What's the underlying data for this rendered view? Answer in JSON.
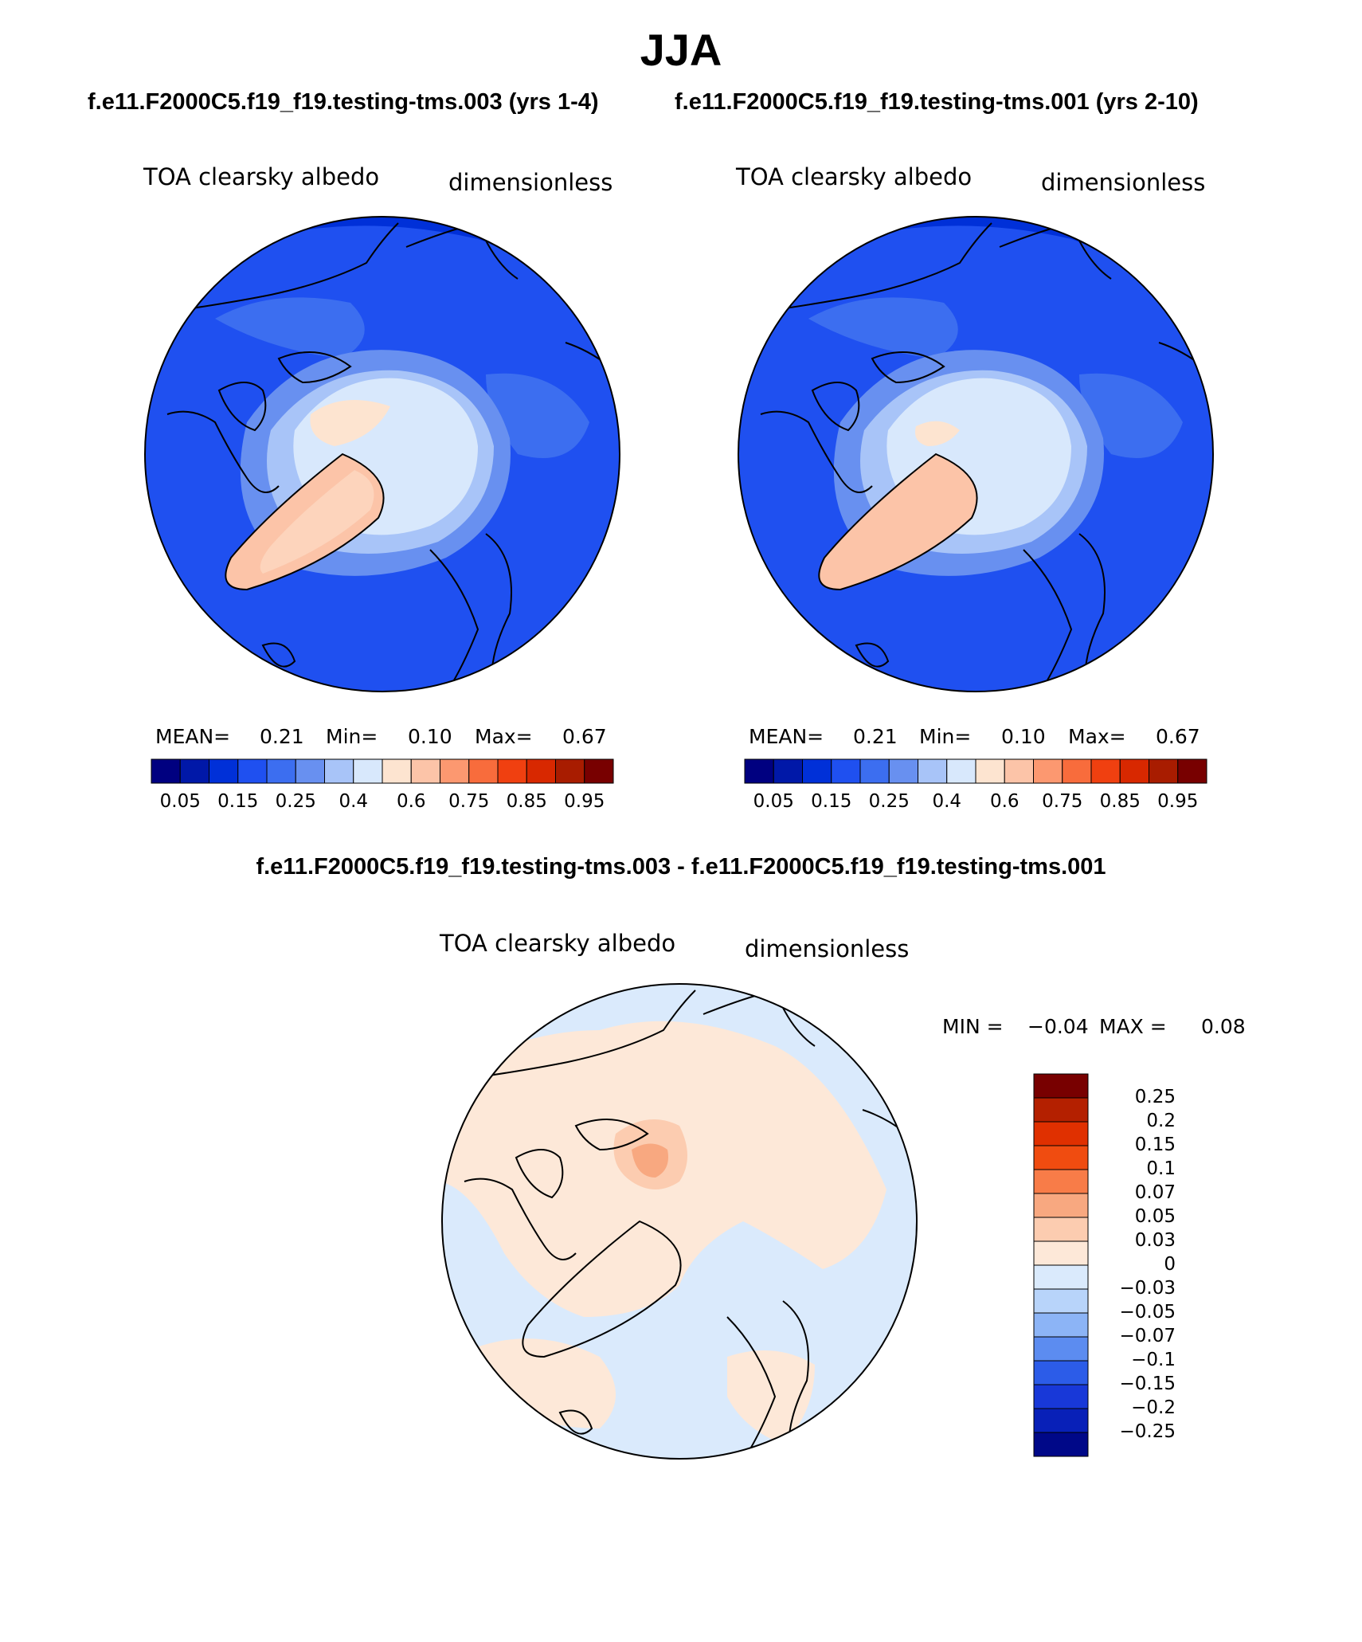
{
  "title": "JJA",
  "panels": [
    {
      "case_title": "f.e11.F2000C5.f19_f19.testing-tms.003 (yrs 1-4)",
      "variable_label": "TOA clearsky albedo",
      "units_label": "dimensionless",
      "stats": {
        "mean_label": "MEAN=",
        "mean_value": "0.21",
        "min_label": "Min=",
        "min_value": "0.10",
        "max_label": "Max=",
        "max_value": "0.67"
      }
    },
    {
      "case_title": "f.e11.F2000C5.f19_f19.testing-tms.001 (yrs 2-10)",
      "variable_label": "TOA clearsky albedo",
      "units_label": "dimensionless",
      "stats": {
        "mean_label": "MEAN=",
        "mean_value": "0.21",
        "min_label": "Min=",
        "min_value": "0.10",
        "max_label": "Max=",
        "max_value": "0.67"
      }
    }
  ],
  "colorbar_top": {
    "colors": [
      "#000080",
      "#0018a8",
      "#0030d8",
      "#1f50f0",
      "#3c6ef0",
      "#6890f0",
      "#a8c4f8",
      "#d8e8fc",
      "#fde4d0",
      "#fcc4a8",
      "#fc9870",
      "#f86c3c",
      "#f04010",
      "#d82800",
      "#a81c00",
      "#780000"
    ],
    "tick_labels": [
      "0.05",
      "0.15",
      "0.25",
      "0.4",
      "0.6",
      "0.75",
      "0.85",
      "0.95"
    ]
  },
  "difference_panel": {
    "title": "f.e11.F2000C5.f19_f19.testing-tms.003 - f.e11.F2000C5.f19_f19.testing-tms.001",
    "variable_label": "TOA clearsky albedo",
    "units_label": "dimensionless",
    "min_label": "MIN =",
    "min_value": "−0.04",
    "max_label": "MAX =",
    "max_value": "0.08",
    "colorbar": {
      "colors": [
        "#780000",
        "#b42000",
        "#e03000",
        "#f04c10",
        "#f87c48",
        "#f8a880",
        "#fcccb0",
        "#fde8d8",
        "#daeafc",
        "#b8d4fa",
        "#8cb4f6",
        "#5c8cf0",
        "#2c5ce8",
        "#1838d8",
        "#0820b8",
        "#000888"
      ],
      "tick_labels": [
        "0.25",
        "0.2",
        "0.15",
        "0.1",
        "0.07",
        "0.05",
        "0.03",
        "0",
        "−0.03",
        "−0.05",
        "−0.07",
        "−0.1",
        "−0.15",
        "−0.2",
        "−0.25"
      ]
    }
  }
}
